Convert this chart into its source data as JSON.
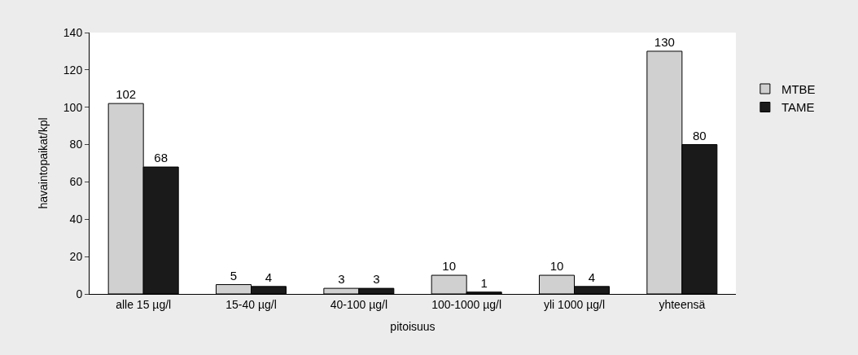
{
  "chart_data": {
    "type": "bar",
    "xlabel": "pitoisuus",
    "ylabel": "havaintopaikat/kpl",
    "categories": [
      "alle 15 µg/l",
      "15-40 µg/l",
      "40-100 µg/l",
      "100-1000 µg/l",
      "yli 1000 µg/l",
      "yhteensä"
    ],
    "series": [
      {
        "name": "MTBE",
        "color": "#d0d0d0",
        "values": [
          102,
          5,
          3,
          10,
          10,
          130
        ]
      },
      {
        "name": "TAME",
        "color": "#1a1a1a",
        "values": [
          68,
          4,
          3,
          1,
          4,
          80
        ]
      }
    ],
    "ylim": [
      0,
      140
    ],
    "yticks": [
      0,
      20,
      40,
      60,
      80,
      100,
      120,
      140
    ],
    "legend": "right",
    "data_labels": true
  }
}
